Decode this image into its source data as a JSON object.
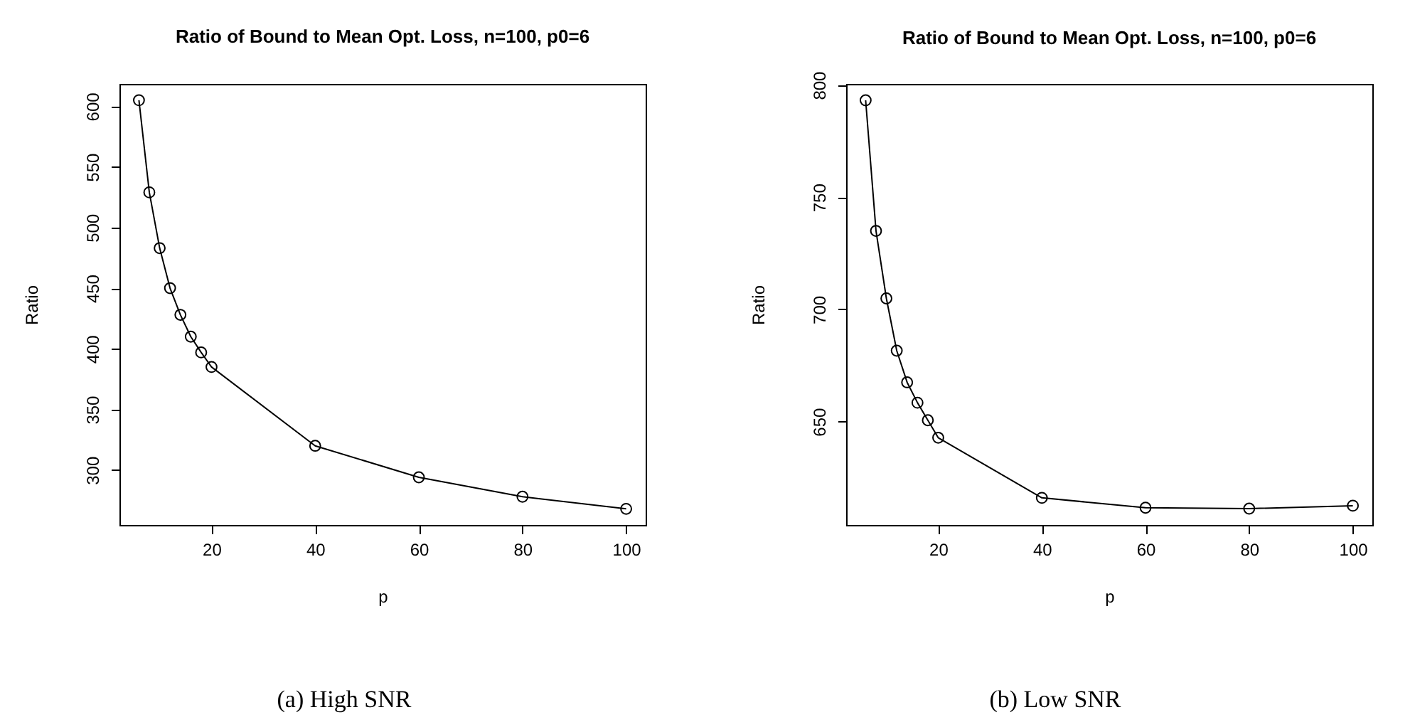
{
  "chart_data": [
    {
      "type": "line",
      "title": "Ratio of Bound to Mean Opt. Loss, n=100, p0=6",
      "xlabel": "p",
      "ylabel": "Ratio",
      "annotations": [
        "(a) High SNR"
      ],
      "x": [
        6,
        8,
        10,
        12,
        14,
        16,
        18,
        20,
        40,
        60,
        80,
        100
      ],
      "series": [
        {
          "color": "#000000",
          "values": [
            605,
            529,
            483,
            450,
            428,
            410,
            397,
            385,
            320,
            294,
            278,
            268
          ]
        }
      ],
      "xlim": [
        2.24,
        103.76
      ],
      "ylim": [
        254.7,
        618.4
      ],
      "xticks": [
        20,
        40,
        60,
        80,
        100
      ],
      "yticks": [
        300,
        350,
        400,
        450,
        500,
        550,
        600
      ],
      "grid": false,
      "marker": "circle",
      "line_style": "solid"
    },
    {
      "type": "line",
      "title": "Ratio of Bound to Mean Opt. Loss, n=100, p0=6",
      "xlabel": "p",
      "ylabel": "Ratio",
      "annotations": [
        "(b) Low SNR"
      ],
      "x": [
        6,
        8,
        10,
        12,
        14,
        16,
        18,
        20,
        40,
        60,
        80,
        100
      ],
      "series": [
        {
          "color": "#000000",
          "values": [
            793.2,
            735,
            704.9,
            681.6,
            667.5,
            658.4,
            650.6,
            642.8,
            616,
            611.6,
            611.2,
            612.5
          ]
        }
      ],
      "xlim": [
        2.24,
        103.76
      ],
      "ylim": [
        603.9,
        800.5
      ],
      "xticks": [
        20,
        40,
        60,
        80,
        100
      ],
      "yticks": [
        650,
        700,
        750,
        800
      ],
      "grid": false,
      "marker": "circle",
      "line_style": "solid"
    }
  ]
}
